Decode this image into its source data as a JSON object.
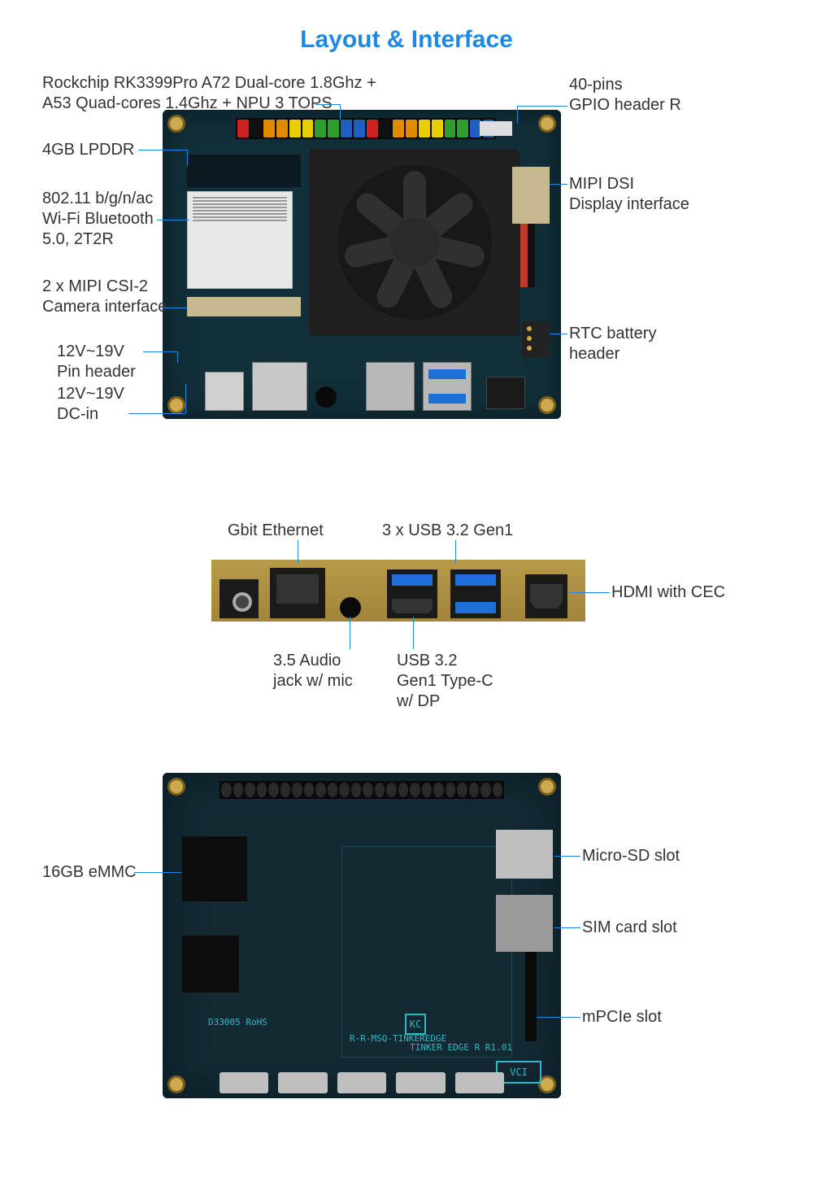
{
  "title": "Layout & Interface",
  "colors": {
    "title": "#1e88e5",
    "leader": "#1e88e5",
    "label": "#333333",
    "pcb_top": "#12303a",
    "pcb_bottom": "#132a33",
    "usb_blue": "#1e6fd8",
    "brass": "#b89a4a",
    "silkscreen": "#2fb8c9"
  },
  "gpio_pin_colors": [
    "#cc2222",
    "#111111",
    "#e08b00",
    "#e08b00",
    "#e8d000",
    "#e8d000",
    "#2e9e2e",
    "#2e9e2e",
    "#1e5fbf",
    "#1e5fbf",
    "#cc2222",
    "#111111",
    "#e08b00",
    "#e08b00",
    "#e8d000",
    "#e8d000",
    "#2e9e2e",
    "#2e9e2e",
    "#1e5fbf",
    "#1e5fbf"
  ],
  "top_labels": {
    "cpu": "Rockchip RK3399Pro A72 Dual-core 1.8Ghz +\nA53 Quad-cores 1.4Ghz + NPU 3 TOPS",
    "lpddr": "4GB LPDDR",
    "wifi": "802.11 b/g/n/ac\nWi-Fi Bluetooth\n5.0, 2T2R",
    "csi": "2 x MIPI CSI-2\nCamera interface",
    "pinheader": "12V~19V\nPin header",
    "dcin": "12V~19V\nDC-in",
    "gpio": "40-pins\nGPIO header R",
    "dsi": "MIPI DSI\nDisplay interface",
    "rtc": "RTC battery\nheader"
  },
  "mid_labels": {
    "eth": "Gbit Ethernet",
    "usb3": "3 x USB 3.2 Gen1",
    "hdmi": "HDMI with CEC",
    "audio": "3.5 Audio\njack w/ mic",
    "usbc": "USB 3.2\nGen1 Type-C\nw/ DP"
  },
  "bot_labels": {
    "emmc": "16GB eMMC",
    "sd": "Micro-SD slot",
    "sim": "SIM card slot",
    "mpcie": "mPCIe slot"
  },
  "silkscreen": {
    "rohs": "D33005\nRoHS",
    "model": "R-R-MSQ-TINKEREDGE",
    "rev": "TINKER EDGE R\nR1.01",
    "kc": "KC",
    "vci": "VCI"
  }
}
